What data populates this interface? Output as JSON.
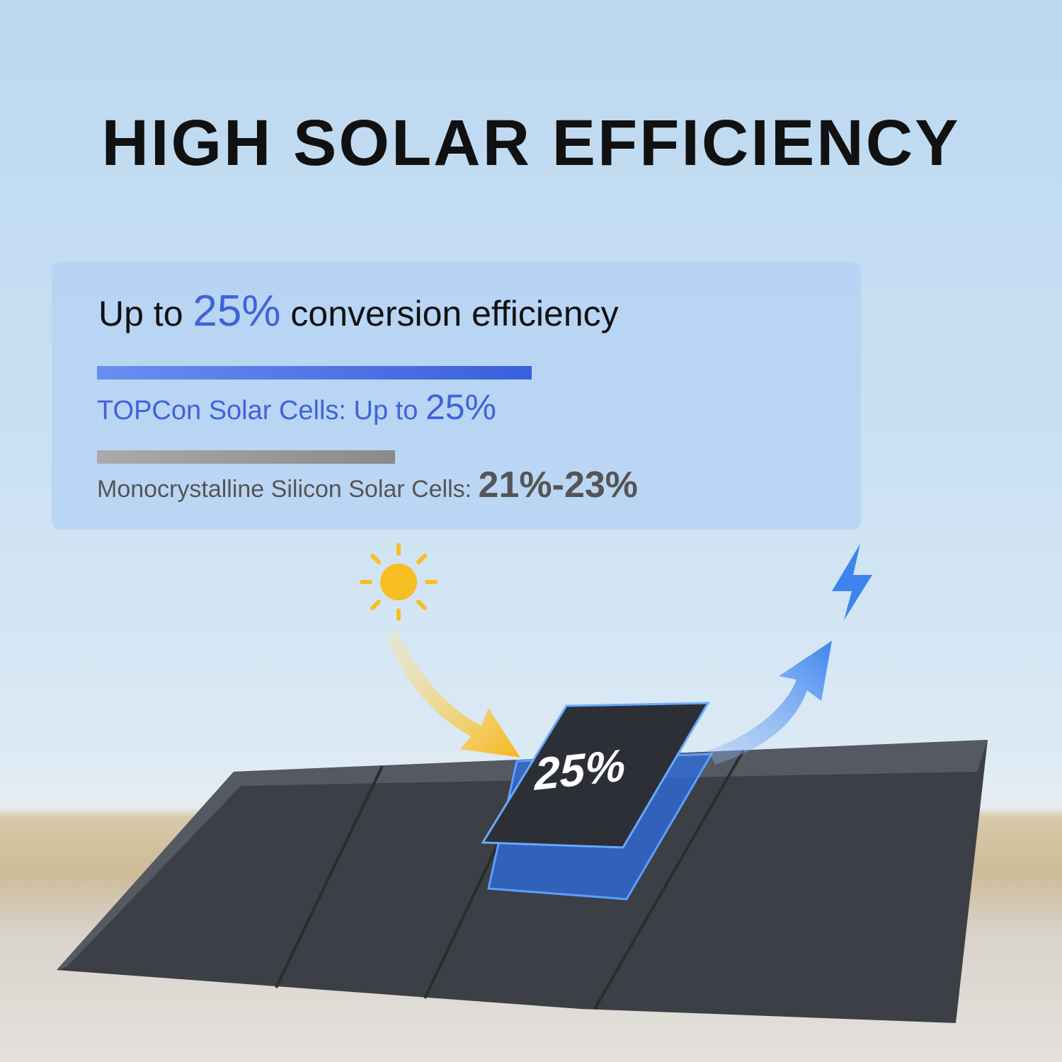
{
  "title": "HIGH SOLAR EFFICIENCY",
  "subtitle": {
    "prefix": "Up to",
    "value": "25%",
    "suffix": "conversion efficiency"
  },
  "comparison": [
    {
      "label": "TOPCon Solar Cells: Up to",
      "value": "25%",
      "bar_percent_of_max": 100,
      "color": "#3f63d8"
    },
    {
      "label": "Monocrystalline Silicon Solar Cells:",
      "value": "21%-23%",
      "bar_percent_of_max": 68.5,
      "color": "#8a8a8a"
    }
  ],
  "panel_label": "25%",
  "icons": [
    "sun-icon",
    "lightning-icon",
    "arrow-in-icon",
    "arrow-out-icon"
  ]
}
